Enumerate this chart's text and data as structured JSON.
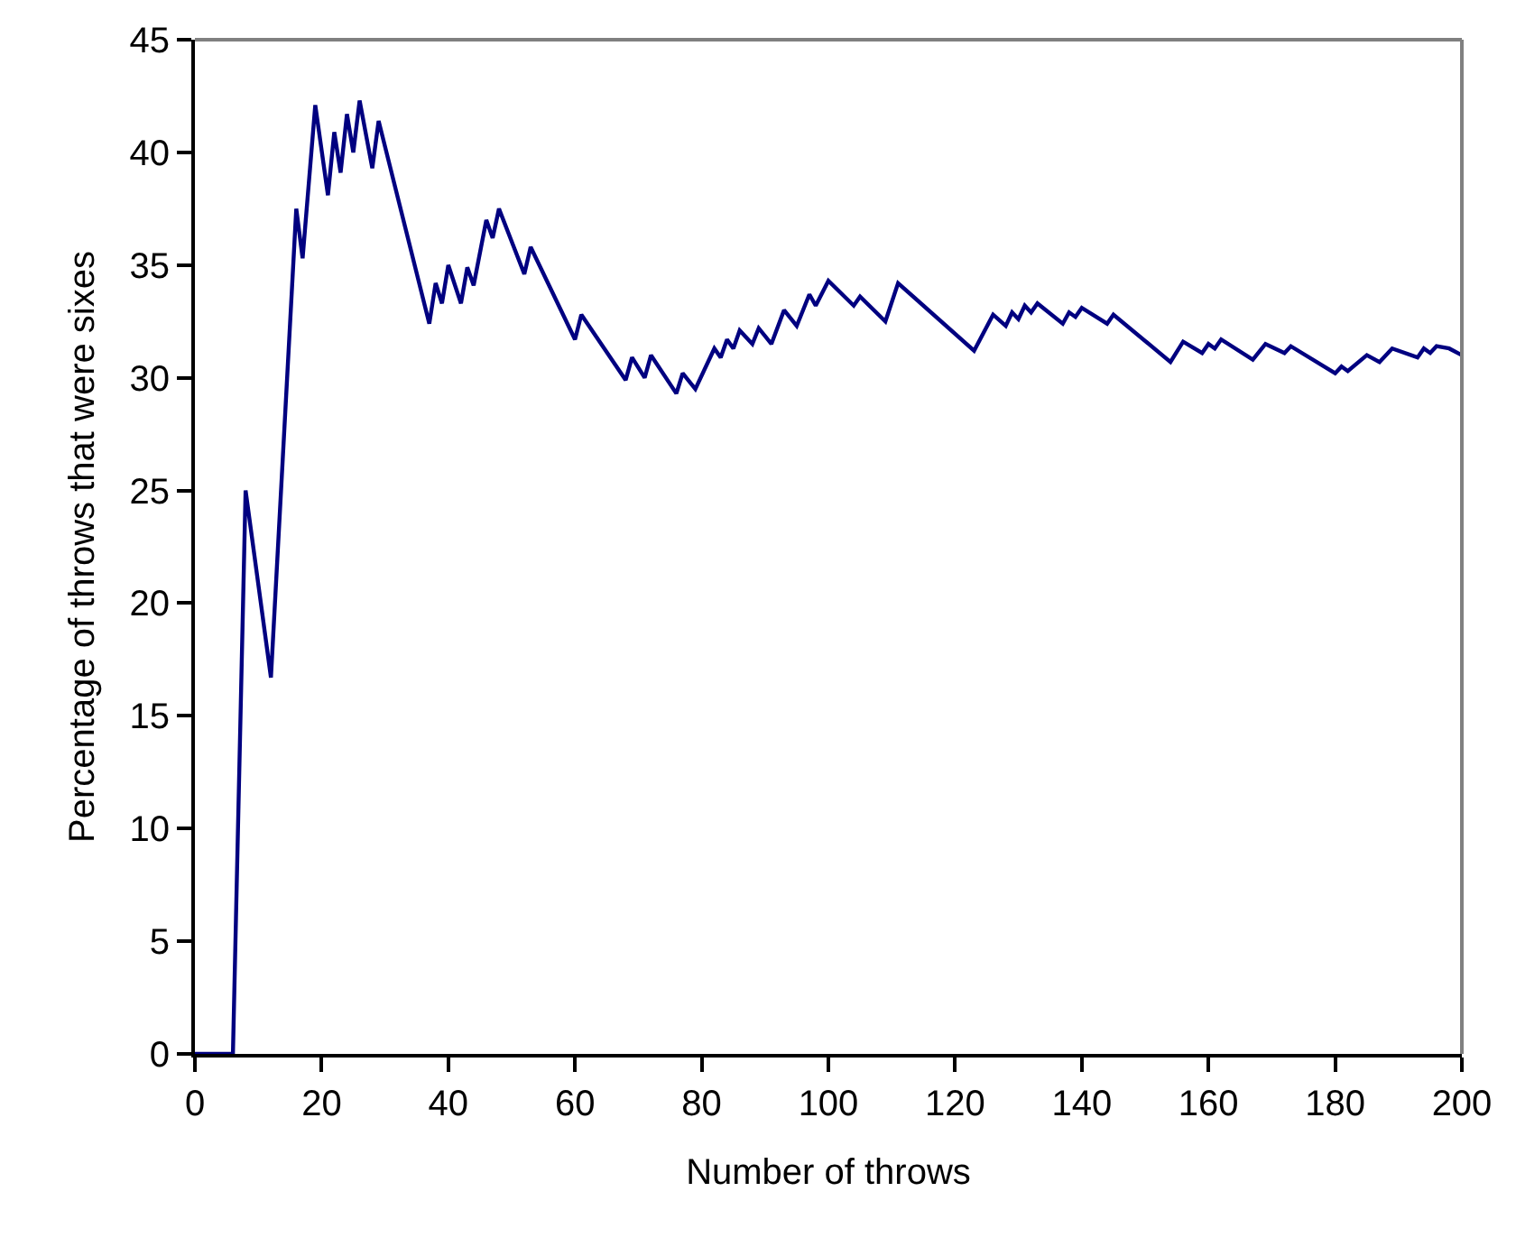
{
  "chart_data": {
    "type": "line",
    "xlabel": "Number of throws",
    "ylabel": "Percentage of throws that were sixes",
    "x": [
      0,
      6,
      8,
      12,
      16,
      17,
      19,
      21,
      22,
      23,
      24,
      25,
      26,
      28,
      29,
      37,
      38,
      39,
      40,
      42,
      43,
      44,
      46,
      47,
      48,
      52,
      53,
      60,
      61,
      68,
      69,
      71,
      72,
      76,
      77,
      79,
      82,
      83,
      84,
      85,
      86,
      88,
      89,
      91,
      93,
      95,
      97,
      98,
      100,
      104,
      105,
      109,
      111,
      123,
      126,
      128,
      129,
      130,
      131,
      132,
      133,
      137,
      138,
      139,
      140,
      144,
      145,
      154,
      156,
      159,
      160,
      161,
      162,
      167,
      169,
      172,
      173,
      180,
      181,
      182,
      185,
      187,
      189,
      193,
      194,
      195,
      196,
      198,
      200
    ],
    "series": [
      {
        "color": "#000080",
        "values": [
          0,
          0,
          25,
          16.7,
          37.5,
          35.3,
          42.1,
          38.1,
          40.9,
          39.1,
          41.7,
          40.0,
          42.3,
          39.3,
          41.4,
          32.4,
          34.2,
          33.3,
          35.0,
          33.3,
          34.9,
          34.1,
          37.0,
          36.2,
          37.5,
          34.6,
          35.8,
          31.7,
          32.8,
          29.9,
          30.9,
          30.0,
          31.0,
          29.3,
          30.2,
          29.5,
          31.3,
          30.9,
          31.7,
          31.3,
          32.1,
          31.5,
          32.2,
          31.5,
          33.0,
          32.3,
          33.7,
          33.2,
          34.3,
          33.2,
          33.6,
          32.5,
          34.2,
          31.2,
          32.8,
          32.3,
          32.9,
          32.6,
          33.2,
          32.9,
          33.3,
          32.4,
          32.9,
          32.7,
          33.1,
          32.4,
          32.8,
          30.7,
          31.6,
          31.1,
          31.5,
          31.3,
          31.7,
          30.8,
          31.5,
          31.1,
          31.4,
          30.2,
          30.5,
          30.3,
          31.0,
          30.7,
          31.3,
          30.9,
          31.3,
          31.1,
          31.4,
          31.3,
          31.0
        ]
      }
    ],
    "xlim": [
      0,
      200
    ],
    "xticks": [
      0,
      20,
      40,
      60,
      80,
      100,
      120,
      140,
      160,
      180,
      200
    ],
    "ylim": [
      0,
      45
    ],
    "yticks": [
      0,
      5,
      10,
      15,
      20,
      25,
      30,
      35,
      40,
      45
    ],
    "marker": "none",
    "line_style": "solid"
  }
}
